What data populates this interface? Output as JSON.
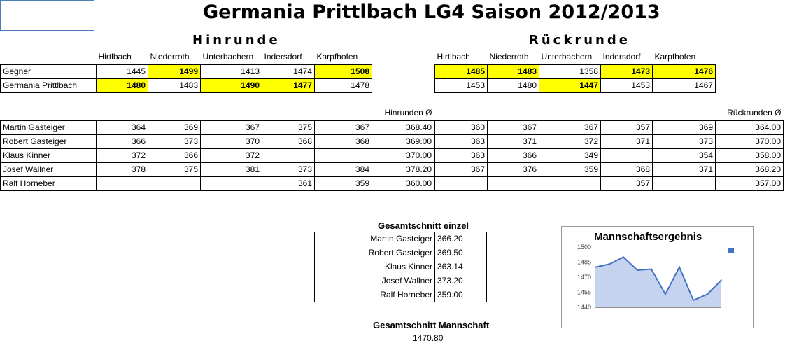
{
  "title": "Germania Prittlbach LG4 Saison 2012/2013",
  "hinrunde": {
    "label": "Hinrunde",
    "opponents": [
      "Hirtlbach",
      "Niederroth",
      "Unterbachern",
      "Indersdorf",
      "Karpfhofen"
    ],
    "gegner": {
      "label": "Gegner",
      "values": [
        "1445",
        "1499",
        "1413",
        "1474",
        "1508"
      ]
    },
    "germania": {
      "label": "Germania Prittlbach",
      "values": [
        "1480",
        "1483",
        "1490",
        "1477",
        "1478"
      ]
    },
    "avg_label": "Hinrunden Ø",
    "players": [
      {
        "name": "Martin Gasteiger",
        "scores": [
          "364",
          "369",
          "367",
          "375",
          "367"
        ],
        "avg": "368.40"
      },
      {
        "name": "Robert Gasteiger",
        "scores": [
          "366",
          "373",
          "370",
          "368",
          "368"
        ],
        "avg": "369.00"
      },
      {
        "name": "Klaus Kinner",
        "scores": [
          "372",
          "366",
          "372",
          "",
          ""
        ],
        "avg": "370.00"
      },
      {
        "name": "Josef Wallner",
        "scores": [
          "378",
          "375",
          "381",
          "373",
          "384"
        ],
        "avg": "378.20"
      },
      {
        "name": "Ralf Horneber",
        "scores": [
          "",
          "",
          "",
          "361",
          "359"
        ],
        "avg": "360.00"
      }
    ]
  },
  "rueckrunde": {
    "label": "Rückrunde",
    "opponents": [
      "Hirtlbach",
      "Niederroth",
      "Unterbachern",
      "Indersdorf",
      "Karpfhofen"
    ],
    "gegner": {
      "values": [
        "1485",
        "1483",
        "1358",
        "1473",
        "1476"
      ]
    },
    "germania": {
      "values": [
        "1453",
        "1480",
        "1447",
        "1453",
        "1467"
      ]
    },
    "avg_label": "Rückrunden Ø",
    "players": [
      {
        "scores": [
          "360",
          "367",
          "367",
          "357",
          "369"
        ],
        "avg": "364.00"
      },
      {
        "scores": [
          "363",
          "371",
          "372",
          "371",
          "373"
        ],
        "avg": "370.00"
      },
      {
        "scores": [
          "363",
          "366",
          "349",
          "",
          "354"
        ],
        "avg": "358.00"
      },
      {
        "scores": [
          "367",
          "376",
          "359",
          "368",
          "371"
        ],
        "avg": "368.20"
      },
      {
        "scores": [
          "",
          "",
          "",
          "357",
          ""
        ],
        "avg": "357.00"
      }
    ]
  },
  "gesamtschnitt_einzel": {
    "title": "Gesamtschnitt einzel",
    "rows": [
      {
        "name": "Martin Gasteiger",
        "value": "366.20"
      },
      {
        "name": "Robert Gasteiger",
        "value": "369.50"
      },
      {
        "name": "Klaus Kinner",
        "value": "363.14"
      },
      {
        "name": "Josef Wallner",
        "value": "373.20"
      },
      {
        "name": "Ralf Horneber",
        "value": "359.00"
      }
    ]
  },
  "gesamtschnitt_mannschaft": {
    "title": "Gesamtschnitt Mannschaft",
    "value": "1470.80"
  },
  "colors": {
    "highlight": "#ffff00",
    "series": "#4472c4",
    "area": "#c5d3ee"
  },
  "chart_data": {
    "type": "area",
    "title": "Mannschaftsergebnis",
    "x": [
      1,
      2,
      3,
      4,
      5,
      6,
      7,
      8,
      9,
      10
    ],
    "series": [
      {
        "values": [
          1480,
          1483,
          1490,
          1477,
          1478,
          1453,
          1480,
          1447,
          1453,
          1467
        ]
      }
    ],
    "ylim": [
      1440,
      1500
    ],
    "yticks": [
      "1500",
      "1485",
      "1470",
      "1455",
      "1440"
    ],
    "grid": false,
    "legend": "right"
  }
}
